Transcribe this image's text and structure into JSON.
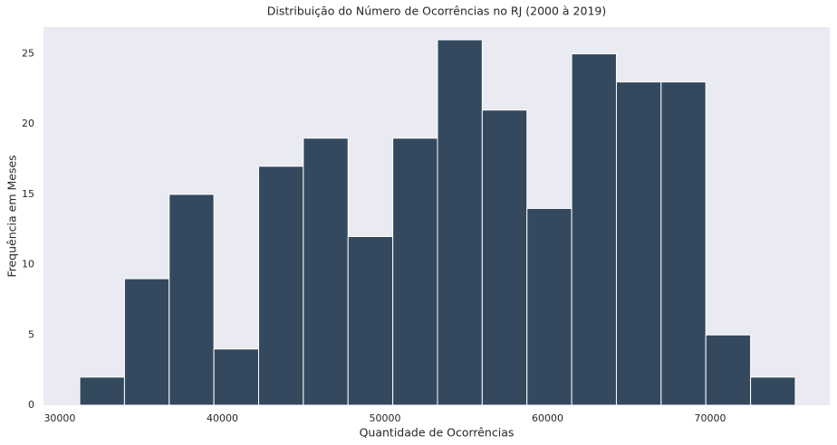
{
  "chart_data": {
    "type": "histogram",
    "title": "Distribuição do Número de Ocorrências no RJ (2000 à 2019)",
    "x_label": "Quantidade de Ocorrências",
    "y_label": "Frequência em Meses",
    "bins": [
      31230,
      33980,
      36730,
      39480,
      42230,
      44980,
      47730,
      50480,
      53230,
      55980,
      58730,
      61480,
      64230,
      66980,
      69730,
      72480,
      75230
    ],
    "values": [
      2,
      9,
      15,
      4,
      17,
      19,
      12,
      19,
      26,
      21,
      14,
      25,
      23,
      23,
      5,
      2
    ],
    "color": "#34495e",
    "xlim": [
      29000,
      77350
    ],
    "xticks": [
      30000,
      40000,
      50000,
      60000,
      70000
    ],
    "ylim": [
      0,
      26.9
    ],
    "yticks": [
      0,
      5,
      10,
      15,
      20,
      25
    ],
    "grid": false
  }
}
